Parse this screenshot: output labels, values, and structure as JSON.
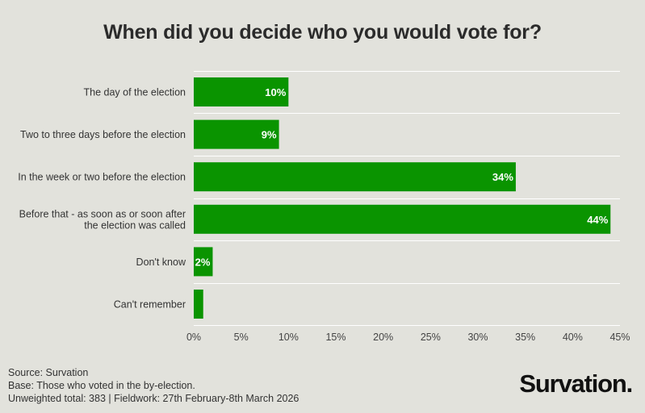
{
  "chart_data": {
    "type": "bar",
    "orientation": "horizontal",
    "title": "When did you decide who you would vote for?",
    "categories": [
      "The day of the election",
      "Two to three days before the election",
      "In the week or two before the election",
      "Before that - as soon as or soon after the election was called",
      "Don't know",
      "Can't remember"
    ],
    "category_lines": [
      [
        "The day of the election"
      ],
      [
        "Two to three days before the election"
      ],
      [
        "In the week or two before the election"
      ],
      [
        "Before that - as soon as or soon after",
        "the election was called"
      ],
      [
        "Don't know"
      ],
      [
        "Can't remember"
      ]
    ],
    "values": [
      10,
      9,
      34,
      44,
      2,
      1
    ],
    "data_labels": [
      "10%",
      "9%",
      "34%",
      "44%",
      "2%",
      ""
    ],
    "xlim": [
      0,
      45
    ],
    "xticks": [
      0,
      5,
      10,
      15,
      20,
      25,
      30,
      35,
      40,
      45
    ],
    "xtick_labels": [
      "0%",
      "5%",
      "10%",
      "15%",
      "20%",
      "25%",
      "30%",
      "35%",
      "40%",
      "45%"
    ],
    "grid": true,
    "bar_color": "#0a9400",
    "label_color": "#ffffff",
    "grid_color": "#ffffff"
  },
  "footer": {
    "source": "Source: Survation",
    "base": "Base: Those who voted in the by-election.",
    "fieldwork": "Unweighted total: 383 | Fieldwork: 27th February-8th March 2026"
  },
  "brand": {
    "logo_text": "Survation."
  }
}
